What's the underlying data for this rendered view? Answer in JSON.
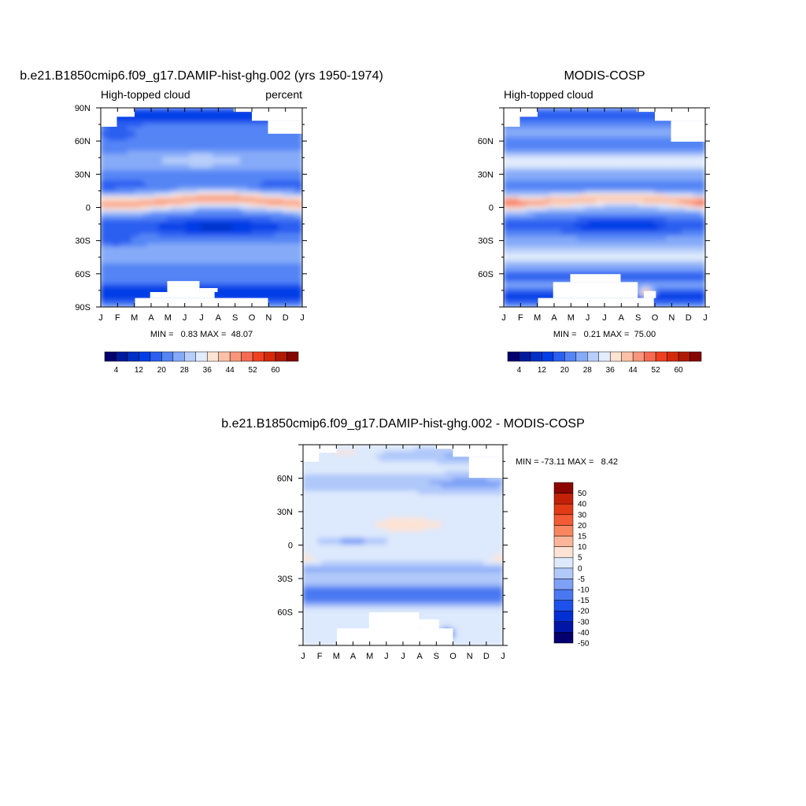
{
  "chart_data": [
    {
      "id": "panel1",
      "type": "heatmap",
      "title": "b.e21.B1850cmip6.f09_g17.DAMIP-hist-ghg.002 (yrs 1950-1974)",
      "subtitle_left": "High-topped cloud",
      "subtitle_right": "percent",
      "x_tick_labels": [
        "J",
        "F",
        "M",
        "A",
        "M",
        "J",
        "J",
        "A",
        "S",
        "O",
        "N",
        "D",
        "J"
      ],
      "y_tick_labels": [
        "90N",
        "60N",
        "30N",
        "0",
        "30S",
        "60S",
        "90S"
      ],
      "y_tick_values": [
        90,
        60,
        30,
        0,
        -30,
        -60,
        -90
      ],
      "ylim": [
        -90,
        90
      ],
      "stats_text": "MIN =   0.83 MAX =  48.07",
      "min": 0.83,
      "max": 48.07,
      "colorbar_labels": [
        "4",
        "12",
        "20",
        "28",
        "36",
        "44",
        "52",
        "60"
      ],
      "colorbar_levels": [
        0,
        4,
        8,
        12,
        16,
        20,
        24,
        28,
        32,
        36,
        40,
        44,
        48,
        52,
        56,
        60,
        64
      ]
    },
    {
      "id": "panel2",
      "type": "heatmap",
      "title": "MODIS-COSP",
      "subtitle_left": "High-topped cloud",
      "x_tick_labels": [
        "J",
        "F",
        "M",
        "A",
        "M",
        "J",
        "J",
        "A",
        "S",
        "O",
        "N",
        "D",
        "J"
      ],
      "y_tick_labels": [
        "60N",
        "30N",
        "0",
        "30S",
        "60S"
      ],
      "y_tick_values": [
        60,
        30,
        0,
        -30,
        -60
      ],
      "ylim": [
        -90,
        90
      ],
      "stats_text": "MIN =   0.21 MAX =  75.00",
      "min": 0.21,
      "max": 75.0,
      "colorbar_labels": [
        "4",
        "12",
        "20",
        "28",
        "36",
        "44",
        "52",
        "60"
      ],
      "colorbar_levels": [
        0,
        4,
        8,
        12,
        16,
        20,
        24,
        28,
        32,
        36,
        40,
        44,
        48,
        52,
        56,
        60,
        64
      ]
    },
    {
      "id": "panel3",
      "type": "heatmap",
      "title": "b.e21.B1850cmip6.f09_g17.DAMIP-hist-ghg.002 - MODIS-COSP",
      "x_tick_labels": [
        "J",
        "F",
        "M",
        "A",
        "M",
        "J",
        "J",
        "A",
        "S",
        "O",
        "N",
        "D",
        "J"
      ],
      "y_tick_labels": [
        "60N",
        "30N",
        "0",
        "30S",
        "60S"
      ],
      "y_tick_values": [
        60,
        30,
        0,
        -30,
        -60
      ],
      "ylim": [
        -90,
        90
      ],
      "stats_text": "MIN = -73.11 MAX =   8.42",
      "min": -73.11,
      "max": 8.42,
      "colorbar_labels": [
        "50",
        "40",
        "30",
        "20",
        "15",
        "10",
        "5",
        "0",
        "-5",
        "-10",
        "-15",
        "-20",
        "-30",
        "-40",
        "-50"
      ],
      "colorbar_levels": [
        -50,
        -40,
        -30,
        -20,
        -15,
        -10,
        -5,
        0,
        5,
        10,
        15,
        20,
        30,
        40,
        50
      ]
    }
  ],
  "colors": {
    "seq_palette": [
      "#04006e",
      "#001a9c",
      "#0030c4",
      "#003ee6",
      "#2a5ff0",
      "#5585f5",
      "#85aaf8",
      "#b7cefa",
      "#e2ecfc",
      "#fde3d4",
      "#fbc0a6",
      "#f8957a",
      "#f56b52",
      "#ef4020",
      "#d42a0c",
      "#b01a05",
      "#850500"
    ],
    "div_palette": [
      "#04006e",
      "#0016a6",
      "#0030d4",
      "#1e50ec",
      "#4a78f2",
      "#7ea1f6",
      "#b0c8fa",
      "#dde9fc",
      "#fde3d4",
      "#fbb699",
      "#f8875f",
      "#f35b34",
      "#e23a16",
      "#c22108",
      "#8c0600"
    ],
    "missing": "#ffffff"
  }
}
